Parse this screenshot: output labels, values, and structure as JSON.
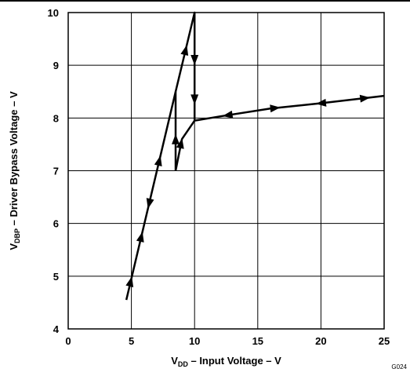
{
  "chart_data": {
    "type": "line",
    "xlabel": {
      "main": "V",
      "sub": "DD",
      "rest": " – Input Voltage – V"
    },
    "ylabel": {
      "main": "V",
      "sub": "DBP",
      "rest": " – Driver Bypass Voltage – V"
    },
    "xlim": [
      0,
      25
    ],
    "ylim": [
      4,
      10
    ],
    "xticks": [
      0,
      5,
      10,
      15,
      20,
      25
    ],
    "yticks": [
      4,
      5,
      6,
      7,
      8,
      9,
      10
    ],
    "grid": true,
    "figure_id": "G024",
    "series": [
      {
        "points": [
          [
            4.6,
            4.55
          ],
          [
            8.5,
            8.5
          ],
          [
            10.0,
            10.0
          ],
          [
            10.0,
            7.95
          ],
          [
            12.0,
            8.03
          ],
          [
            16.0,
            8.18
          ],
          [
            20.0,
            8.28
          ],
          [
            25.0,
            8.42
          ]
        ]
      },
      {
        "points": [
          [
            8.5,
            7.0
          ],
          [
            9.0,
            7.6
          ],
          [
            10.0,
            7.95
          ]
        ]
      },
      {
        "points": [
          [
            8.5,
            7.0
          ],
          [
            8.5,
            8.5
          ]
        ]
      }
    ],
    "arrows": [
      {
        "x": 4.97,
        "y": 4.9,
        "dir": "up"
      },
      {
        "x": 5.8,
        "y": 5.75,
        "dir": "up"
      },
      {
        "x": 6.45,
        "y": 6.37,
        "dir": "down"
      },
      {
        "x": 7.1,
        "y": 7.2,
        "dir": "up"
      },
      {
        "x": 9.15,
        "y": 9.3,
        "dir": "up"
      },
      {
        "x": 8.5,
        "y": 7.6,
        "dir": "up"
      },
      {
        "x": 9.0,
        "y": 7.52,
        "dir": "up"
      },
      {
        "x": 10.0,
        "y": 9.1,
        "dir": "down"
      },
      {
        "x": 10.0,
        "y": 8.35,
        "dir": "down"
      },
      {
        "x": 12.6,
        "y": 8.05,
        "dir": "left"
      },
      {
        "x": 16.4,
        "y": 8.17,
        "dir": "right"
      },
      {
        "x": 20.0,
        "y": 8.28,
        "dir": "left"
      },
      {
        "x": 23.5,
        "y": 8.38,
        "dir": "right"
      }
    ]
  }
}
